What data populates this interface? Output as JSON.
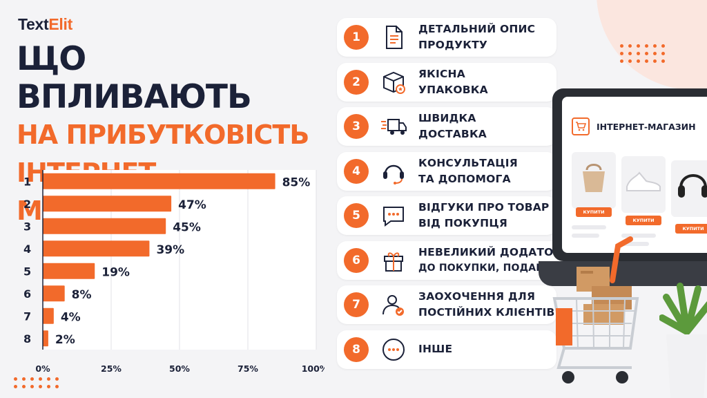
{
  "brand": {
    "name_main": "Text",
    "name_accent": "Elit"
  },
  "title": {
    "line1": "ЩО ВПЛИВАЮТЬ",
    "line2": "НА ПРИБУТКОВІСТЬ",
    "line3": "ІНТЕРНЕТ-МАГАЗИНУ"
  },
  "colors": {
    "accent": "#f26a2b",
    "dark": "#1b2138",
    "background": "#f4f4f6"
  },
  "chart_data": {
    "type": "bar",
    "orientation": "horizontal",
    "categories": [
      "1",
      "2",
      "3",
      "4",
      "5",
      "6",
      "7",
      "8"
    ],
    "values": [
      85,
      47,
      45,
      39,
      19,
      8,
      4,
      2
    ],
    "value_labels": [
      "85%",
      "47%",
      "45%",
      "39%",
      "19%",
      "8%",
      "4%",
      "2%"
    ],
    "xlim": [
      0,
      100
    ],
    "x_ticks": [
      "0%",
      "25%",
      "50%",
      "75%",
      "100%"
    ],
    "grid": true,
    "bar_color": "#f26a2b"
  },
  "factors": [
    {
      "num": "1",
      "icon": "document-icon",
      "line1": "ДЕТАЛЬНИЙ ОПИС",
      "line2": "ПРОДУКТУ"
    },
    {
      "num": "2",
      "icon": "package-icon",
      "line1": "ЯКІСНА",
      "line2": "УПАКОВКА"
    },
    {
      "num": "3",
      "icon": "delivery-truck-icon",
      "line1": "ШВИДКА",
      "line2": "ДОСТАВКА"
    },
    {
      "num": "4",
      "icon": "headset-icon",
      "line1": "КОНСУЛЬТАЦІЯ",
      "line2": "ТА ДОПОМОГА"
    },
    {
      "num": "5",
      "icon": "chat-bubble-icon",
      "line1": "ВІДГУКИ ПРО ТОВАР",
      "line2": "ВІД ПОКУПЦЯ"
    },
    {
      "num": "6",
      "icon": "gift-icon",
      "line1": "НЕВЕЛИКИЙ ДОДАТОК",
      "line2": "ДО ПОКУПКИ, ПОДАРУНОК"
    },
    {
      "num": "7",
      "icon": "user-check-icon",
      "line1": "ЗАОХОЧЕННЯ ДЛЯ",
      "line2": "ПОСТІЙНИХ КЛІЄНТІВ"
    },
    {
      "num": "8",
      "icon": "more-dots-icon",
      "line1": "ІНШЕ",
      "line2": ""
    }
  ],
  "shop": {
    "title": "ІНТЕРНЕТ-МАГАЗИН",
    "buy_label": "КУПИТИ",
    "products": [
      "handbag-icon",
      "sneakers-icon",
      "headphones-icon"
    ]
  }
}
